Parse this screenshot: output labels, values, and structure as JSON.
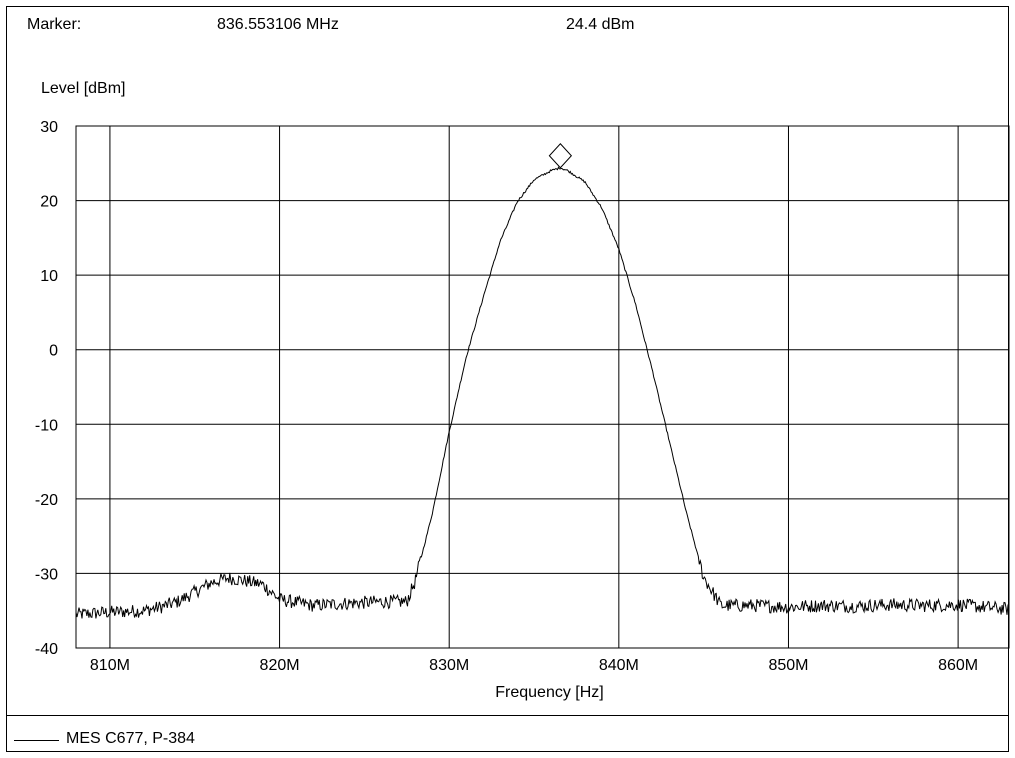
{
  "header": {
    "marker_label": "Marker:",
    "marker_frequency": "836.553106 MHz",
    "marker_level": "24.4 dBm"
  },
  "chart_data": {
    "type": "line",
    "ylabel": "Level [dBm]",
    "xlabel": "Frequency [Hz]",
    "xlim": [
      808000000,
      863000000
    ],
    "ylim": [
      -40,
      30
    ],
    "grid": true,
    "xticks": [
      {
        "value": 810000000,
        "label": "810M"
      },
      {
        "value": 820000000,
        "label": "820M"
      },
      {
        "value": 830000000,
        "label": "830M"
      },
      {
        "value": 840000000,
        "label": "840M"
      },
      {
        "value": 850000000,
        "label": "850M"
      },
      {
        "value": 860000000,
        "label": "860M"
      }
    ],
    "yticks": [
      {
        "value": 30,
        "label": "30"
      },
      {
        "value": 20,
        "label": "20"
      },
      {
        "value": 10,
        "label": "10"
      },
      {
        "value": 0,
        "label": "0"
      },
      {
        "value": -10,
        "label": "-10"
      },
      {
        "value": -20,
        "label": "-20"
      },
      {
        "value": -30,
        "label": "-30"
      },
      {
        "value": -40,
        "label": "-40"
      }
    ],
    "marker": {
      "x": 836553106,
      "y": 24.4
    },
    "series": [
      {
        "name": "MES  C677, P-384",
        "color": "#000000",
        "x": [
          808000000,
          810000000,
          812000000,
          813000000,
          814000000,
          815000000,
          816000000,
          817000000,
          818000000,
          819000000,
          820000000,
          822000000,
          824000000,
          826000000,
          827500000,
          828000000,
          829000000,
          830000000,
          831000000,
          832000000,
          833000000,
          834000000,
          835000000,
          836000000,
          836553106,
          837000000,
          838000000,
          839000000,
          840000000,
          841000000,
          842000000,
          843000000,
          844000000,
          845000000,
          846000000,
          848000000,
          850000000,
          852000000,
          854000000,
          856000000,
          858000000,
          860000000,
          862000000,
          863000000
        ],
        "values": [
          -35.5,
          -35.2,
          -35.0,
          -34.5,
          -33.8,
          -32.5,
          -31.2,
          -30.6,
          -31.0,
          -31.5,
          -33.5,
          -34.3,
          -34.0,
          -33.8,
          -33.8,
          -31.0,
          -22.0,
          -11.0,
          -1.0,
          7.0,
          14.5,
          19.8,
          22.8,
          24.0,
          24.4,
          24.0,
          22.5,
          19.0,
          13.5,
          6.0,
          -3.0,
          -12.5,
          -22.0,
          -30.5,
          -34.3,
          -34.3,
          -34.5,
          -34.3,
          -34.4,
          -34.2,
          -34.3,
          -34.2,
          -34.6,
          -34.8
        ]
      }
    ]
  },
  "legend": {
    "label": "MES  C677, P-384"
  }
}
